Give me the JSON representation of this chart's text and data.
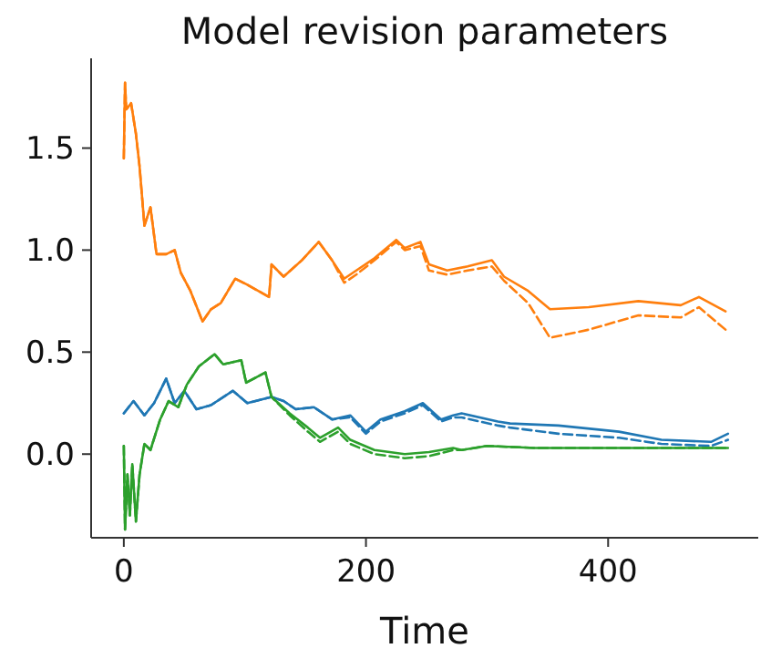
{
  "chart_data": {
    "type": "line",
    "title": "Model revision parameters",
    "xlabel": "Time",
    "xlim": [
      -27,
      524
    ],
    "xticks": [
      0,
      200,
      400
    ],
    "ylim": [
      -0.41,
      1.94
    ],
    "yticks": [
      {
        "value": 0,
        "label": "0.0"
      },
      0.5,
      {
        "value": 1,
        "label": "1.0"
      },
      1.5
    ],
    "series": [
      {
        "color": "#1f77b4",
        "line_style": "solid",
        "x": [
          0,
          8,
          17,
          25,
          35,
          42,
          50,
          60,
          72,
          90,
          102,
          122,
          132,
          142,
          157,
          172,
          187,
          200,
          212,
          232,
          247,
          262,
          272,
          279,
          309,
          319,
          359,
          409,
          444,
          485,
          499
        ],
        "values": [
          0.2,
          0.26,
          0.19,
          0.25,
          0.37,
          0.25,
          0.31,
          0.22,
          0.24,
          0.31,
          0.25,
          0.28,
          0.26,
          0.22,
          0.23,
          0.17,
          0.19,
          0.11,
          0.17,
          0.21,
          0.25,
          0.17,
          0.19,
          0.2,
          0.16,
          0.15,
          0.14,
          0.11,
          0.07,
          0.06,
          0.1
        ]
      },
      {
        "color": "#1f77b4",
        "line_style": "dashed",
        "x": [
          0,
          8,
          17,
          25,
          35,
          42,
          50,
          60,
          72,
          90,
          102,
          122,
          132,
          142,
          157,
          172,
          187,
          200,
          212,
          232,
          247,
          262,
          272,
          279,
          309,
          319,
          359,
          409,
          444,
          485,
          499
        ],
        "values": [
          0.2,
          0.26,
          0.19,
          0.25,
          0.37,
          0.25,
          0.31,
          0.22,
          0.24,
          0.31,
          0.25,
          0.28,
          0.26,
          0.22,
          0.23,
          0.17,
          0.18,
          0.1,
          0.16,
          0.2,
          0.24,
          0.16,
          0.18,
          0.18,
          0.14,
          0.13,
          0.1,
          0.08,
          0.05,
          0.04,
          0.07
        ]
      },
      {
        "color": "#ff7f0e",
        "line_style": "solid",
        "x": [
          0,
          1,
          2,
          6,
          10,
          13,
          17,
          22,
          27,
          35,
          42,
          47,
          55,
          65,
          72,
          80,
          92,
          102,
          120,
          122,
          132,
          147,
          161,
          172,
          182,
          192,
          207,
          225,
          232,
          245,
          252,
          267,
          284,
          304,
          314,
          334,
          352,
          384,
          425,
          460,
          475,
          497
        ],
        "values": [
          1.45,
          1.82,
          1.69,
          1.72,
          1.57,
          1.41,
          1.12,
          1.21,
          0.98,
          0.98,
          1.0,
          0.89,
          0.8,
          0.65,
          0.71,
          0.74,
          0.86,
          0.83,
          0.77,
          0.93,
          0.87,
          0.95,
          1.04,
          0.95,
          0.86,
          0.9,
          0.96,
          1.05,
          1.01,
          1.04,
          0.93,
          0.9,
          0.92,
          0.95,
          0.87,
          0.8,
          0.71,
          0.72,
          0.75,
          0.73,
          0.77,
          0.7
        ]
      },
      {
        "color": "#ff7f0e",
        "line_style": "dashed",
        "x": [
          0,
          1,
          2,
          6,
          10,
          13,
          17,
          22,
          27,
          35,
          42,
          47,
          55,
          65,
          72,
          80,
          92,
          102,
          120,
          122,
          132,
          147,
          161,
          172,
          182,
          192,
          207,
          225,
          232,
          245,
          252,
          267,
          284,
          304,
          314,
          334,
          352,
          384,
          425,
          460,
          475,
          497
        ],
        "values": [
          1.45,
          1.82,
          1.69,
          1.72,
          1.57,
          1.41,
          1.12,
          1.21,
          0.98,
          0.98,
          1.0,
          0.89,
          0.8,
          0.65,
          0.71,
          0.74,
          0.86,
          0.83,
          0.77,
          0.93,
          0.87,
          0.95,
          1.04,
          0.95,
          0.84,
          0.88,
          0.95,
          1.04,
          1.0,
          1.02,
          0.9,
          0.88,
          0.9,
          0.92,
          0.85,
          0.74,
          0.57,
          0.61,
          0.68,
          0.67,
          0.72,
          0.61
        ]
      },
      {
        "color": "#2ca02c",
        "line_style": "solid",
        "x": [
          0,
          1,
          3,
          5,
          7,
          10,
          13,
          17,
          22,
          30,
          37,
          45,
          52,
          62,
          75,
          82,
          97,
          101,
          117,
          122,
          137,
          152,
          162,
          177,
          187,
          207,
          232,
          252,
          272,
          279,
          300,
          340,
          400,
          450,
          499
        ],
        "values": [
          0.04,
          -0.37,
          -0.1,
          -0.3,
          -0.05,
          -0.33,
          -0.1,
          0.05,
          0.02,
          0.17,
          0.26,
          0.23,
          0.34,
          0.43,
          0.49,
          0.44,
          0.46,
          0.35,
          0.4,
          0.28,
          0.2,
          0.13,
          0.08,
          0.13,
          0.07,
          0.02,
          0.0,
          0.01,
          0.03,
          0.02,
          0.04,
          0.03,
          0.03,
          0.03,
          0.03
        ]
      },
      {
        "color": "#2ca02c",
        "line_style": "dashed",
        "x": [
          0,
          1,
          3,
          5,
          7,
          10,
          13,
          17,
          22,
          30,
          37,
          45,
          52,
          62,
          75,
          82,
          97,
          101,
          117,
          122,
          137,
          152,
          162,
          177,
          187,
          207,
          232,
          252,
          272,
          279,
          300,
          340,
          400,
          450,
          499
        ],
        "values": [
          0.04,
          -0.37,
          -0.1,
          -0.3,
          -0.05,
          -0.33,
          -0.1,
          0.05,
          0.02,
          0.17,
          0.26,
          0.23,
          0.34,
          0.43,
          0.49,
          0.44,
          0.46,
          0.35,
          0.4,
          0.28,
          0.19,
          0.11,
          0.06,
          0.11,
          0.05,
          0.0,
          -0.02,
          -0.01,
          0.02,
          0.02,
          0.04,
          0.03,
          0.03,
          0.03,
          0.03
        ]
      }
    ]
  }
}
